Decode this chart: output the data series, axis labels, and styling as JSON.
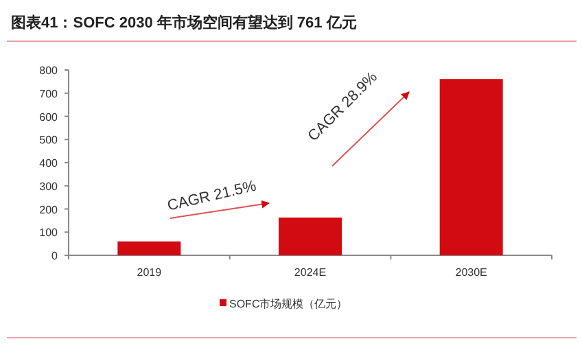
{
  "chart_data": {
    "type": "bar",
    "title": "图表41：SOFC 2030 年市场空间有望达到 761 亿元",
    "categories": [
      "2019",
      "2024E",
      "2030E"
    ],
    "series": [
      {
        "name": "SOFC市场规模（亿元）",
        "color": "#d20a11",
        "values": [
          60,
          163,
          761
        ]
      }
    ],
    "ylim": [
      0,
      800
    ],
    "yticks": [
      0,
      100,
      200,
      300,
      400,
      500,
      600,
      700,
      800
    ],
    "annotations": [
      "CAGR 21.5%",
      "CAGR 28.9%"
    ],
    "legend": "bottom",
    "grid": false
  }
}
